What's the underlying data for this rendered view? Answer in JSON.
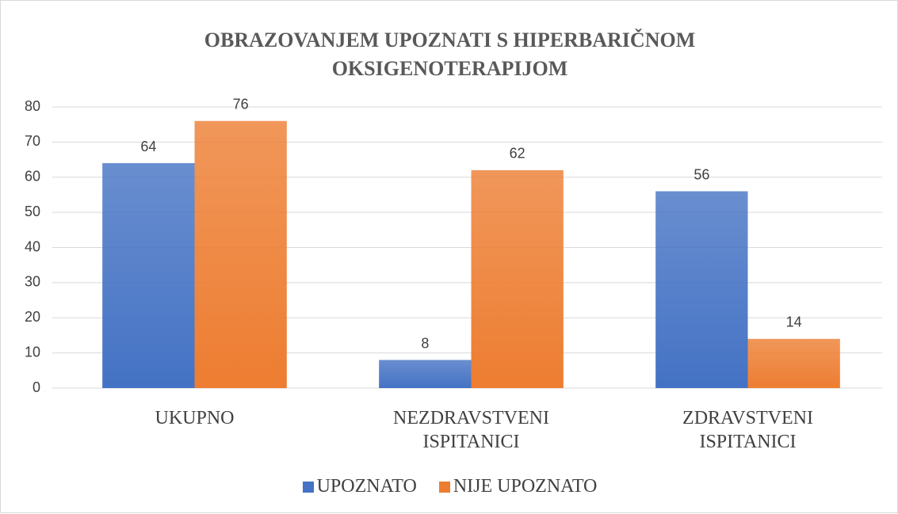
{
  "chart_data": {
    "type": "bar",
    "title": "OBRAZOVANJEM UPOZNATI S HIPERBARIČNOM OKSIGENOTERAPIJOM",
    "categories": [
      "UKUPNO",
      "NEZDRAVSTVENI ISPITANICI",
      "ZDRAVSTVENI ISPITANICI"
    ],
    "series": [
      {
        "name": "UPOZNATO",
        "color": "#4472c4",
        "values": [
          64,
          8,
          56
        ]
      },
      {
        "name": "NIJE UPOZNATO",
        "color": "#ed7d31",
        "values": [
          76,
          62,
          14
        ]
      }
    ],
    "ylim": [
      0,
      80
    ],
    "yticks": [
      0,
      10,
      20,
      30,
      40,
      50,
      60,
      70,
      80
    ],
    "grid": true,
    "legend": "bottom"
  }
}
